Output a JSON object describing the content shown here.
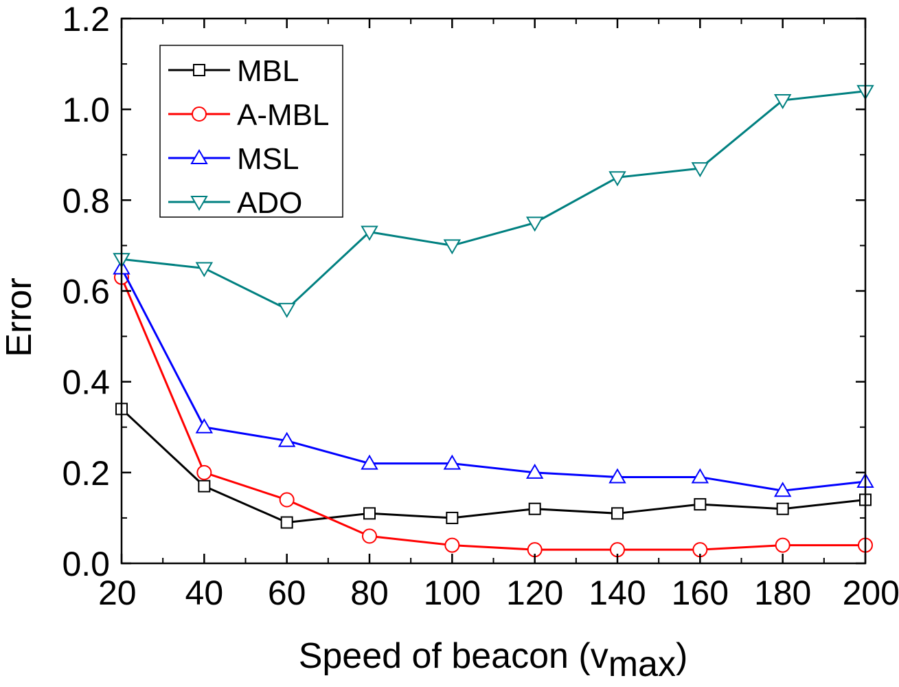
{
  "chart_data": {
    "type": "line",
    "title": "",
    "xlabel_main": "Speed of beacon (v",
    "xlabel_sub": "max",
    "xlabel_close": ")",
    "ylabel": "Error",
    "x": [
      20,
      40,
      60,
      80,
      100,
      120,
      140,
      160,
      180,
      200
    ],
    "xlim": [
      20,
      200
    ],
    "ylim": [
      0.0,
      1.2
    ],
    "xticks": [
      20,
      40,
      60,
      80,
      100,
      120,
      140,
      160,
      180,
      200
    ],
    "xtick_labels": [
      "20",
      "40",
      "60",
      "80",
      "100",
      "120",
      "140",
      "160",
      "180",
      "200"
    ],
    "yticks": [
      0.0,
      0.2,
      0.4,
      0.6,
      0.8,
      1.0,
      1.2
    ],
    "ytick_labels": [
      "0.0",
      "0.2",
      "0.4",
      "0.6",
      "0.8",
      "1.0",
      "1.2"
    ],
    "grid": false,
    "legend_position": "top-left",
    "series": [
      {
        "name": "MBL",
        "color": "#000000",
        "marker": "square",
        "values": [
          0.34,
          0.17,
          0.09,
          0.11,
          0.1,
          0.12,
          0.11,
          0.13,
          0.12,
          0.14
        ]
      },
      {
        "name": "A-MBL",
        "color": "#ff0000",
        "marker": "circle",
        "values": [
          0.63,
          0.2,
          0.14,
          0.06,
          0.04,
          0.03,
          0.03,
          0.03,
          0.04,
          0.04
        ]
      },
      {
        "name": "MSL",
        "color": "#0000ff",
        "marker": "triangle-up",
        "values": [
          0.65,
          0.3,
          0.27,
          0.22,
          0.22,
          0.2,
          0.19,
          0.19,
          0.16,
          0.18
        ]
      },
      {
        "name": "ADO",
        "color": "#008080",
        "marker": "triangle-down",
        "values": [
          0.67,
          0.65,
          0.56,
          0.73,
          0.7,
          0.75,
          0.85,
          0.87,
          1.02,
          1.04
        ]
      }
    ]
  }
}
